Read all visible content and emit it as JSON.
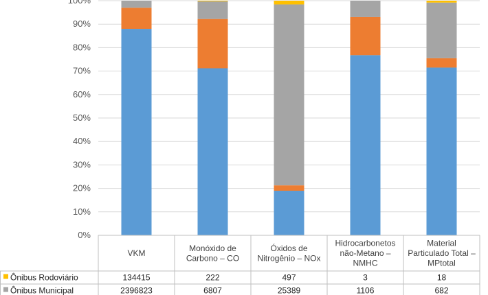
{
  "chart_data": {
    "type": "bar",
    "stacked": true,
    "percent_stacked": true,
    "grid": true,
    "title": "",
    "xlabel": "",
    "ylabel": "",
    "ylim": [
      0,
      100
    ],
    "y_ticks": [
      "0%",
      "10%",
      "20%",
      "30%",
      "40%",
      "50%",
      "60%",
      "70%",
      "80%",
      "90%",
      "100%"
    ],
    "categories": [
      [
        "VKM"
      ],
      [
        "Monóxido de",
        "Carbono – CO"
      ],
      [
        "Óxidos de",
        "Nitrogênio – NOx"
      ],
      [
        "Hidrocarbonetos",
        "não-Metano –",
        "NMHC"
      ],
      [
        "Material",
        "Particulado Total –",
        "MPtotal"
      ]
    ],
    "series": [
      {
        "name": "Ônibus Rodoviário",
        "color": "#FFC000",
        "table_values": [
          "134415",
          "222",
          "497",
          "3",
          "18"
        ],
        "percent": [
          0.0,
          0.3,
          1.6,
          0.0,
          0.8
        ]
      },
      {
        "name": "Ônibus Municipal",
        "color": "#A5A5A5",
        "table_values": [
          "2396823",
          "6807",
          "25389",
          "1106",
          "682"
        ],
        "percent": [
          3.0,
          7.5,
          77.1,
          7.0,
          23.7
        ]
      },
      {
        "name": "",
        "color": "#ED7D31",
        "table_values": [],
        "percent": [
          9.0,
          21.0,
          2.3,
          16.2,
          4.0
        ]
      },
      {
        "name": "",
        "color": "#5B9BD5",
        "table_values": [],
        "percent": [
          88.0,
          71.2,
          19.0,
          76.8,
          71.5
        ]
      }
    ]
  }
}
